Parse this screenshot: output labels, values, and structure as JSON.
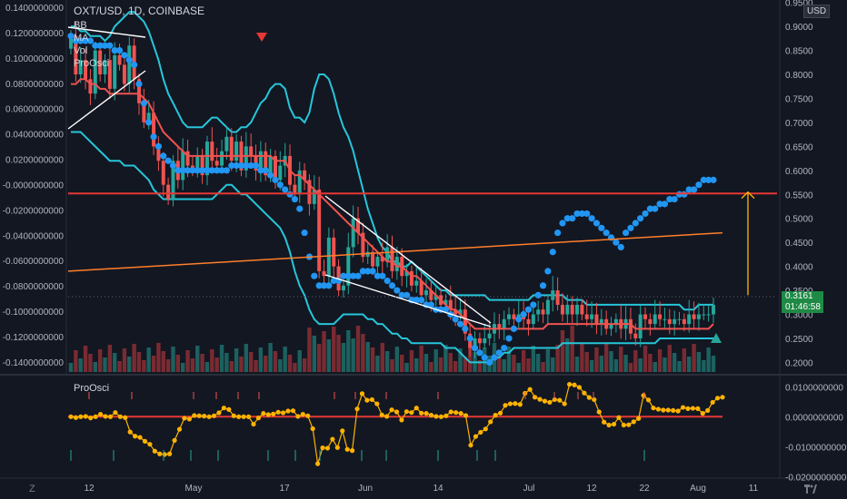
{
  "header": {
    "title": "OXT/USD, 1D, COINBASE",
    "legend": [
      "BB",
      "MA",
      "Vol",
      "ProOsci"
    ],
    "currency_badge": "USD"
  },
  "price_tag": {
    "price": "0.3161",
    "countdown": "01:46:58"
  },
  "sub_panel_title": "ProOsci",
  "corner_icons": {
    "left": "Z",
    "right": "tv-logo-icon"
  },
  "colors": {
    "background": "#131722",
    "up": "#26a69a",
    "down": "#ef5350",
    "bb_band": "#26c6da",
    "ma": "#ef5350",
    "ma_long": "#ff7f2a",
    "dots": "#2196f3",
    "osc": "#ffb300",
    "signal_line": "#e53935",
    "arrow": "#ffb300"
  },
  "chart_data": [
    {
      "type": "candlestick",
      "title": "OXT/USD, 1D, COINBASE",
      "x_tick_labels": [
        "12",
        "May",
        "17",
        "Jun",
        "14",
        "Jul",
        "12",
        "22",
        "Aug",
        "11"
      ],
      "right_axis": {
        "ticks": [
          "0.9500",
          "0.9000",
          "0.8500",
          "0.8000",
          "0.7500",
          "0.7000",
          "0.6500",
          "0.6000",
          "0.5500",
          "0.5000",
          "0.4500",
          "0.4000",
          "0.3500",
          "0.3000",
          "0.2500",
          "0.2000"
        ],
        "range": [
          0.18,
          0.955
        ]
      },
      "left_axis": {
        "ticks": [
          "0.1400000000",
          "0.1200000000",
          "0.1000000000",
          "0.0800000000",
          "0.0600000000",
          "0.0400000000",
          "0.0200000000",
          "-0.0000000000",
          "-0.0200000000",
          "-0.0400000000",
          "-0.0600000000",
          "-0.0800000000",
          "-0.1000000000",
          "-0.1200000000",
          "-0.1400000000"
        ],
        "range": [
          -0.148,
          0.14
        ]
      },
      "close": [
        0.88,
        0.8,
        0.83,
        0.79,
        0.76,
        0.85,
        0.8,
        0.83,
        0.77,
        0.84,
        0.82,
        0.78,
        0.86,
        0.79,
        0.74,
        0.7,
        0.72,
        0.65,
        0.62,
        0.57,
        0.54,
        0.62,
        0.58,
        0.64,
        0.61,
        0.6,
        0.63,
        0.59,
        0.66,
        0.62,
        0.61,
        0.64,
        0.67,
        0.62,
        0.66,
        0.6,
        0.65,
        0.63,
        0.6,
        0.64,
        0.59,
        0.63,
        0.58,
        0.61,
        0.63,
        0.57,
        0.55,
        0.6,
        0.58,
        0.53,
        0.56,
        0.39,
        0.38,
        0.46,
        0.4,
        0.35,
        0.36,
        0.44,
        0.5,
        0.47,
        0.42,
        0.43,
        0.4,
        0.42,
        0.41,
        0.44,
        0.39,
        0.42,
        0.38,
        0.39,
        0.36,
        0.37,
        0.34,
        0.35,
        0.33,
        0.34,
        0.32,
        0.33,
        0.31,
        0.3,
        0.31,
        0.26,
        0.23,
        0.25,
        0.24,
        0.25,
        0.26,
        0.28,
        0.27,
        0.29,
        0.3,
        0.29,
        0.3,
        0.29,
        0.28,
        0.3,
        0.31,
        0.3,
        0.33,
        0.35,
        0.32,
        0.3,
        0.32,
        0.3,
        0.32,
        0.3,
        0.29,
        0.3,
        0.28,
        0.29,
        0.27,
        0.28,
        0.29,
        0.27,
        0.29,
        0.26,
        0.25,
        0.3,
        0.29,
        0.28,
        0.3,
        0.29,
        0.29,
        0.28,
        0.29,
        0.29,
        0.28,
        0.3,
        0.29,
        0.3,
        0.3,
        0.3,
        0.32
      ],
      "volume_scale_note": "",
      "bollinger": {
        "upper": [
          0.9,
          0.9,
          0.89,
          0.89,
          0.88,
          0.88,
          0.88,
          0.87,
          0.88,
          0.9,
          0.91,
          0.92,
          0.93,
          0.93,
          0.92,
          0.91,
          0.89,
          0.86,
          0.83,
          0.79,
          0.76,
          0.74,
          0.72,
          0.7,
          0.69,
          0.69,
          0.69,
          0.69,
          0.7,
          0.71,
          0.71,
          0.7,
          0.69,
          0.68,
          0.68,
          0.69,
          0.69,
          0.7,
          0.72,
          0.74,
          0.75,
          0.77,
          0.78,
          0.78,
          0.77,
          0.73,
          0.71,
          0.71,
          0.7,
          0.72,
          0.77,
          0.8,
          0.8,
          0.79,
          0.76,
          0.72,
          0.69,
          0.67,
          0.64,
          0.6,
          0.56,
          0.52,
          0.49,
          0.46,
          0.44,
          0.43,
          0.41,
          0.41,
          0.4,
          0.4,
          0.41,
          0.4,
          0.39,
          0.38,
          0.37,
          0.36,
          0.35,
          0.35,
          0.34,
          0.34,
          0.34,
          0.34,
          0.34,
          0.34,
          0.34,
          0.34,
          0.33,
          0.33,
          0.33,
          0.33,
          0.33,
          0.33,
          0.33,
          0.33,
          0.33,
          0.34,
          0.34,
          0.34,
          0.34,
          0.34,
          0.34,
          0.34,
          0.33,
          0.33,
          0.33,
          0.33,
          0.32,
          0.32,
          0.32,
          0.32,
          0.32,
          0.32,
          0.32,
          0.32,
          0.32,
          0.32,
          0.32,
          0.32,
          0.32,
          0.32,
          0.32,
          0.32,
          0.32,
          0.32,
          0.32,
          0.32,
          0.31,
          0.31,
          0.31,
          0.32,
          0.32,
          0.32,
          0.32
        ],
        "lower": [
          0.68,
          0.68,
          0.68,
          0.67,
          0.66,
          0.65,
          0.64,
          0.63,
          0.62,
          0.62,
          0.62,
          0.61,
          0.61,
          0.61,
          0.6,
          0.59,
          0.58,
          0.56,
          0.55,
          0.54,
          0.54,
          0.54,
          0.54,
          0.54,
          0.54,
          0.54,
          0.54,
          0.54,
          0.54,
          0.54,
          0.55,
          0.56,
          0.57,
          0.57,
          0.56,
          0.55,
          0.55,
          0.54,
          0.53,
          0.52,
          0.51,
          0.5,
          0.49,
          0.48,
          0.46,
          0.43,
          0.39,
          0.36,
          0.34,
          0.31,
          0.29,
          0.28,
          0.28,
          0.28,
          0.28,
          0.29,
          0.3,
          0.3,
          0.3,
          0.3,
          0.3,
          0.29,
          0.29,
          0.28,
          0.28,
          0.27,
          0.26,
          0.26,
          0.25,
          0.25,
          0.24,
          0.24,
          0.24,
          0.24,
          0.24,
          0.24,
          0.24,
          0.23,
          0.23,
          0.23,
          0.22,
          0.21,
          0.2,
          0.2,
          0.2,
          0.2,
          0.2,
          0.21,
          0.21,
          0.22,
          0.22,
          0.23,
          0.23,
          0.23,
          0.23,
          0.23,
          0.23,
          0.23,
          0.23,
          0.23,
          0.23,
          0.24,
          0.24,
          0.24,
          0.24,
          0.24,
          0.24,
          0.24,
          0.24,
          0.24,
          0.24,
          0.24,
          0.24,
          0.24,
          0.24,
          0.24,
          0.24,
          0.24,
          0.24,
          0.24,
          0.24,
          0.25,
          0.25,
          0.25,
          0.25,
          0.25,
          0.25,
          0.25,
          0.25,
          0.25,
          0.25,
          0.25,
          0.25
        ]
      },
      "ma": [
        0.78,
        0.78,
        0.79,
        0.79,
        0.78,
        0.78,
        0.77,
        0.77,
        0.76,
        0.76,
        0.76,
        0.76,
        0.76,
        0.76,
        0.76,
        0.75,
        0.74,
        0.72,
        0.7,
        0.68,
        0.67,
        0.66,
        0.65,
        0.64,
        0.63,
        0.63,
        0.63,
        0.63,
        0.63,
        0.63,
        0.63,
        0.63,
        0.63,
        0.63,
        0.63,
        0.63,
        0.63,
        0.63,
        0.63,
        0.63,
        0.63,
        0.63,
        0.62,
        0.62,
        0.62,
        0.6,
        0.59,
        0.59,
        0.58,
        0.57,
        0.56,
        0.55,
        0.54,
        0.53,
        0.52,
        0.51,
        0.5,
        0.49,
        0.48,
        0.47,
        0.46,
        0.45,
        0.44,
        0.43,
        0.42,
        0.41,
        0.41,
        0.4,
        0.4,
        0.39,
        0.38,
        0.38,
        0.37,
        0.36,
        0.35,
        0.34,
        0.33,
        0.32,
        0.31,
        0.31,
        0.3,
        0.29,
        0.28,
        0.27,
        0.27,
        0.27,
        0.27,
        0.27,
        0.27,
        0.27,
        0.27,
        0.27,
        0.27,
        0.27,
        0.27,
        0.27,
        0.27,
        0.27,
        0.28,
        0.28,
        0.28,
        0.28,
        0.28,
        0.28,
        0.28,
        0.28,
        0.28,
        0.28,
        0.28,
        0.28,
        0.28,
        0.28,
        0.28,
        0.28,
        0.28,
        0.28,
        0.27,
        0.27,
        0.27,
        0.27,
        0.27,
        0.27,
        0.27,
        0.27,
        0.27,
        0.27,
        0.27,
        0.27,
        0.27,
        0.27,
        0.27,
        0.27,
        0.28
      ],
      "ma_long": {
        "start": 0.39,
        "end": 0.47
      },
      "dots": [
        0.88,
        0.87,
        0.87,
        0.87,
        0.87,
        0.86,
        0.86,
        0.86,
        0.86,
        0.85,
        0.85,
        0.84,
        0.83,
        0.82,
        0.78,
        0.74,
        0.7,
        0.67,
        0.65,
        0.63,
        0.62,
        0.61,
        0.6,
        0.6,
        0.6,
        0.6,
        0.6,
        0.6,
        0.6,
        0.6,
        0.6,
        0.6,
        0.6,
        0.61,
        0.61,
        0.61,
        0.61,
        0.61,
        0.61,
        0.6,
        0.6,
        0.59,
        0.58,
        0.57,
        0.56,
        0.55,
        0.54,
        0.52,
        0.47,
        0.42,
        0.38,
        0.36,
        0.36,
        0.36,
        0.37,
        0.37,
        0.38,
        0.38,
        0.38,
        0.38,
        0.39,
        0.39,
        0.39,
        0.38,
        0.38,
        0.37,
        0.36,
        0.35,
        0.34,
        0.34,
        0.33,
        0.33,
        0.33,
        0.32,
        0.32,
        0.31,
        0.31,
        0.31,
        0.3,
        0.29,
        0.28,
        0.27,
        0.25,
        0.23,
        0.22,
        0.21,
        0.2,
        0.21,
        0.22,
        0.23,
        0.25,
        0.27,
        0.29,
        0.3,
        0.31,
        0.32,
        0.34,
        0.36,
        0.39,
        0.43,
        0.47,
        0.49,
        0.5,
        0.5,
        0.51,
        0.51,
        0.51,
        0.5,
        0.49,
        0.48,
        0.47,
        0.46,
        0.45,
        0.44,
        0.47,
        0.48,
        0.49,
        0.5,
        0.51,
        0.52,
        0.52,
        0.53,
        0.53,
        0.54,
        0.54,
        0.55,
        0.55,
        0.56,
        0.56,
        0.57,
        0.58,
        0.58,
        0.58
      ],
      "horizontal_line": 0.552,
      "arrow": {
        "from": 0.34,
        "to": 0.555,
        "direction": "up"
      }
    },
    {
      "type": "line",
      "title": "ProOsci",
      "right_axis": {
        "ticks": [
          "0.0100000000",
          "0.0000000000",
          "-0.0100000000",
          "-0.0200000000"
        ],
        "range": [
          -0.0205,
          0.0125
        ]
      },
      "zero_line": 0.0,
      "values": [
        0.0,
        -0.0003,
        0.0,
        0.0001,
        -0.0004,
        0.0,
        0.0008,
        0.0001,
        0.0,
        0.0014,
        0.0,
        -0.0003,
        -0.0051,
        -0.0065,
        -0.0069,
        -0.0082,
        -0.0092,
        -0.0115,
        -0.0124,
        -0.0126,
        -0.0124,
        -0.0079,
        -0.0042,
        -0.0005,
        -0.0008,
        0.0004,
        0.0003,
        0.0002,
        0.0,
        0.0003,
        0.0013,
        0.0029,
        0.0024,
        0.0003,
        0.0,
        0.0,
        0.0,
        -0.0025,
        -0.0004,
        0.0011,
        0.0007,
        0.0009,
        0.0015,
        0.0013,
        0.0019,
        0.002,
        0.0001,
        0.0008,
        0.0003,
        -0.004,
        -0.0157,
        -0.0104,
        -0.0105,
        -0.0075,
        -0.0103,
        -0.0047,
        -0.0109,
        -0.0113,
        0.0026,
        0.0077,
        0.0055,
        0.0057,
        0.0043,
        0.0006,
        0.0001,
        0.0023,
        0.0016,
        -0.0011,
        0.0017,
        0.0014,
        0.0029,
        0.0012,
        0.0011,
        0.0005,
        0.0001,
        0.0,
        0.0003,
        0.0016,
        0.0014,
        0.0011,
        0.0004,
        -0.0095,
        -0.0066,
        -0.0052,
        -0.0041,
        -0.0017,
        0.0005,
        0.0012,
        0.0038,
        0.0043,
        0.0044,
        0.0041,
        0.0078,
        0.0091,
        0.0065,
        0.0058,
        0.0052,
        0.0048,
        0.0057,
        0.0055,
        0.0043,
        0.0108,
        0.0106,
        0.0098,
        0.0079,
        0.0064,
        0.0057,
        0.0016,
        -0.0018,
        -0.0028,
        -0.0025,
        -0.0003,
        -0.0028,
        -0.0027,
        -0.0017,
        -0.0006,
        0.0071,
        0.0056,
        0.0029,
        0.0025,
        0.0022,
        0.0022,
        0.0021,
        0.0019,
        0.0031,
        0.0027,
        0.0028,
        0.0027,
        0.0011,
        0.0021,
        0.0048,
        0.0062,
        0.0065
      ]
    }
  ]
}
